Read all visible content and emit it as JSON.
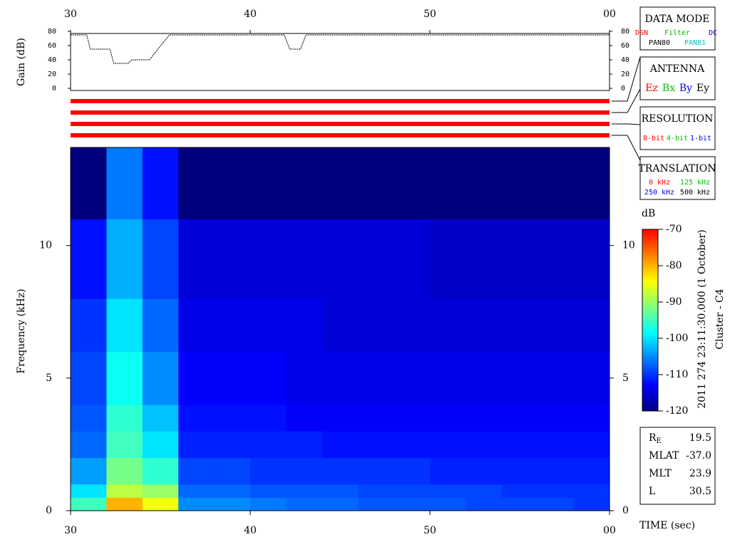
{
  "chart_data": [
    {
      "type": "line",
      "y_label": "Gain (dB)",
      "color": "#000000",
      "x": [
        30,
        30.9,
        31.1,
        32.2,
        32.4,
        33.2,
        33.4,
        34.4,
        34.7,
        35.5,
        41.9,
        42.2,
        42.8,
        43.1,
        60
      ],
      "values": [
        75,
        75,
        55,
        55,
        35,
        35,
        40,
        40,
        50,
        75,
        75,
        55,
        55,
        75,
        75
      ],
      "xlim": [
        30,
        60
      ],
      "xticks": [
        30,
        40,
        50,
        {
          "value": 60,
          "label": "00"
        }
      ],
      "ylim": [
        0,
        80
      ],
      "yticks": [
        0,
        20,
        40,
        60,
        80
      ]
    },
    {
      "type": "heatmap",
      "title": "2011 274 23:11:30.000 (1 October)",
      "subtitle": "Cluster - C4",
      "x_label": "TIME (sec)",
      "y_label": "Frequency (kHz)",
      "x_bins": [
        30,
        32,
        34,
        36,
        38,
        40,
        42,
        44,
        46,
        48,
        50,
        52,
        54,
        56,
        58,
        60
      ],
      "y_bins": [
        0,
        0.5,
        1,
        2,
        3,
        4,
        6,
        8,
        11,
        13.7
      ],
      "values": [
        [
          -95,
          -80,
          -85,
          -105,
          -105,
          -106,
          -107,
          -107,
          -108,
          -108,
          -108,
          -109,
          -109,
          -109,
          -110
        ],
        [
          -100,
          -88,
          -90,
          -107,
          -107,
          -108,
          -108,
          -108,
          -109,
          -109,
          -109,
          -109,
          -110,
          -110,
          -110
        ],
        [
          -104,
          -92,
          -96,
          -109,
          -109,
          -110,
          -110,
          -110,
          -110,
          -110,
          -111,
          -111,
          -111,
          -111,
          -111
        ],
        [
          -107,
          -95,
          -100,
          -111,
          -111,
          -111,
          -111,
          -112,
          -112,
          -112,
          -112,
          -112,
          -112,
          -112,
          -112
        ],
        [
          -108,
          -96,
          -102,
          -112,
          -112,
          -112,
          -113,
          -113,
          -113,
          -113,
          -113,
          -113,
          -113,
          -113,
          -113
        ],
        [
          -109,
          -98,
          -105,
          -113,
          -113,
          -113,
          -114,
          -114,
          -114,
          -114,
          -114,
          -114,
          -114,
          -114,
          -114
        ],
        [
          -110,
          -100,
          -107,
          -114,
          -114,
          -114,
          -114,
          -115,
          -115,
          -115,
          -115,
          -115,
          -115,
          -115,
          -115
        ],
        [
          -112,
          -103,
          -109,
          -115,
          -115,
          -115,
          -115,
          -115,
          -115,
          -115,
          -116,
          -116,
          -116,
          -116,
          -116
        ],
        [
          -125,
          -106,
          -112,
          -125,
          -125,
          -125,
          -125,
          -125,
          -125,
          -125,
          -125,
          -125,
          -125,
          -125,
          -125
        ]
      ],
      "xlim": [
        30,
        60
      ],
      "xticks": [
        30,
        40,
        50,
        {
          "value": 60,
          "label": "00"
        }
      ],
      "ylim": [
        0,
        13.7
      ],
      "yticks": [
        0,
        5,
        10
      ],
      "colorbar": {
        "label": "dB",
        "lim": [
          -120,
          -70
        ],
        "ticks": [
          -70,
          -80,
          -90,
          -100,
          -110,
          -120
        ],
        "colors": [
          "#00007f",
          "#0000ff",
          "#007fff",
          "#00ffff",
          "#7fff7f",
          "#ffff00",
          "#ff7f00",
          "#ff0000"
        ]
      }
    }
  ],
  "status_bar_colors": [
    "#ff0000",
    "#ff0000",
    "#ff0000",
    "#ff0000"
  ],
  "panels": [
    {
      "title": "DATA MODE",
      "rows": [
        [
          {
            "text": "DSN",
            "color": "#ff0000"
          },
          {
            "text": "Filter",
            "color": "#00c000"
          },
          {
            "text": "DC",
            "color": "#0000ff"
          }
        ],
        [
          {
            "text": "PAN80",
            "color": "#000000"
          },
          {
            "text": "PAN81",
            "color": "#00c0c0"
          }
        ]
      ]
    },
    {
      "title": "ANTENNA",
      "rows": [
        [
          {
            "text": "Ez",
            "color": "#ff0000"
          },
          {
            "text": "Bx",
            "color": "#00c000"
          },
          {
            "text": "By",
            "color": "#0000ff"
          },
          {
            "text": "Ey",
            "color": "#000000"
          }
        ]
      ]
    },
    {
      "title": "RESOLUTION",
      "rows": [
        [
          {
            "text": "8-bit",
            "color": "#ff0000"
          },
          {
            "text": "4-bit",
            "color": "#00c000"
          },
          {
            "text": "1-bit",
            "color": "#0000ff"
          }
        ]
      ]
    },
    {
      "title": "TRANSLATION",
      "rows": [
        [
          {
            "text": "0 kHz",
            "color": "#ff0000"
          },
          {
            "text": "125 kHz",
            "color": "#00c000"
          }
        ],
        [
          {
            "text": "250 kHz",
            "color": "#0000ff"
          },
          {
            "text": "500 kHz",
            "color": "#000000"
          }
        ]
      ]
    }
  ],
  "orbit": [
    {
      "label": "R",
      "sub": "E",
      "value": "19.5"
    },
    {
      "label": "MLAT",
      "value": "-37.0"
    },
    {
      "label": "MLT",
      "value": "23.9"
    },
    {
      "label": "L",
      "value": "30.5"
    }
  ]
}
